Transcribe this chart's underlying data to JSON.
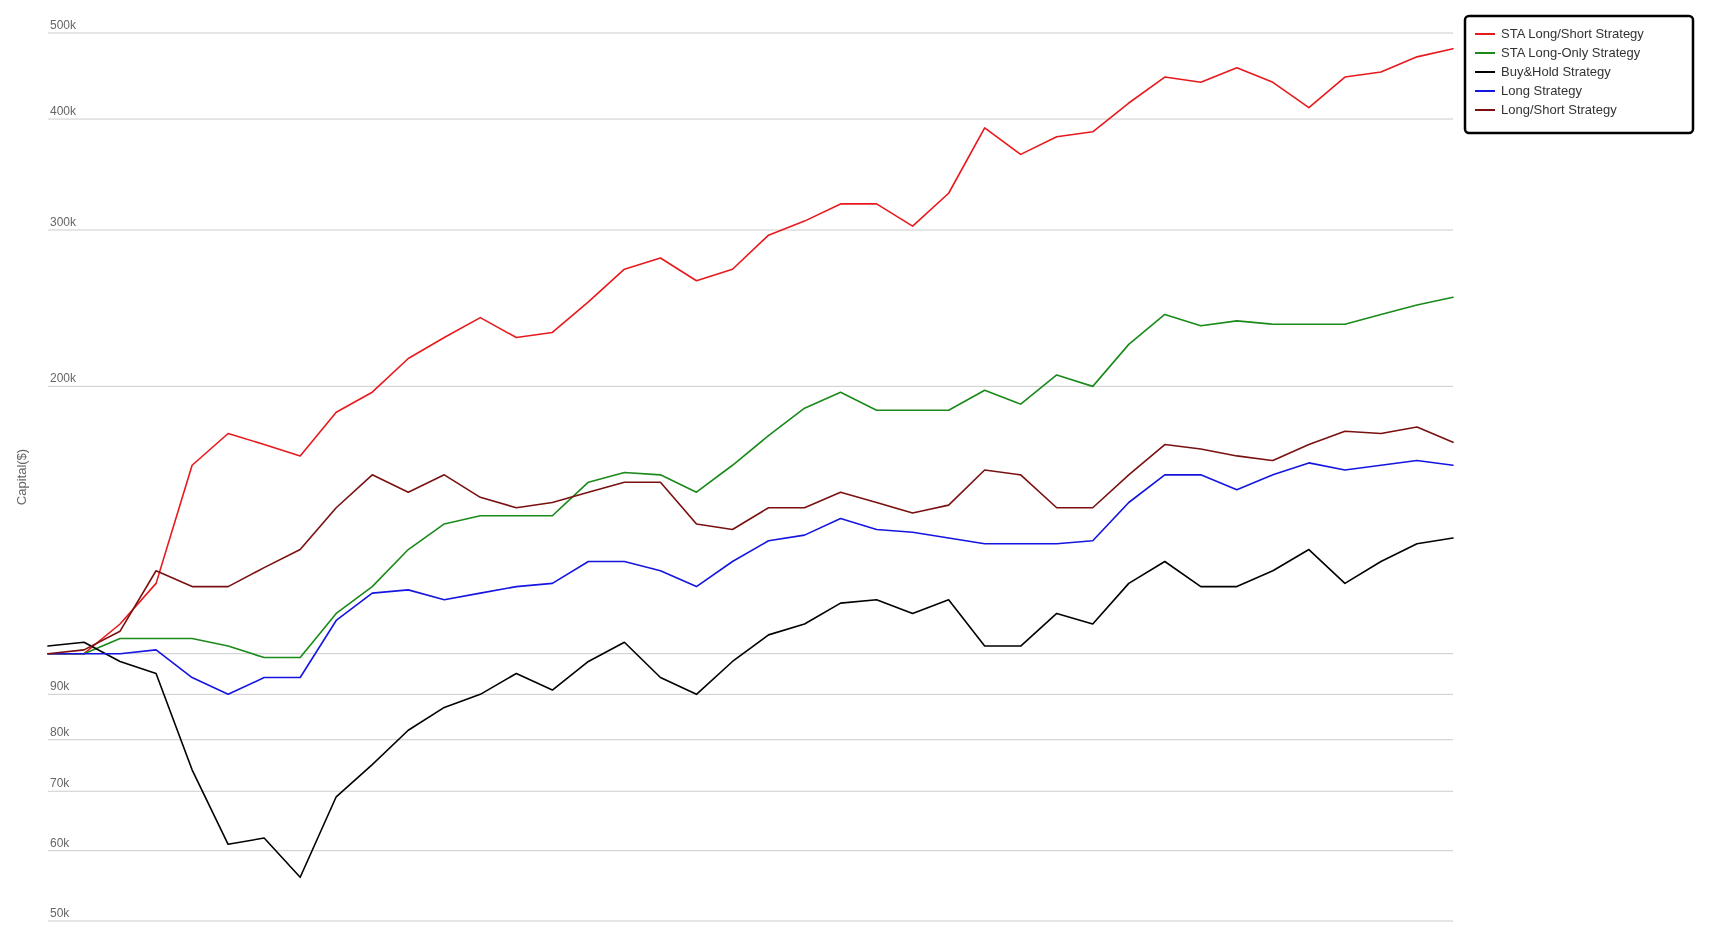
{
  "chart_data": {
    "type": "line",
    "ylabel": "Capital($)",
    "log": true,
    "grid": "y",
    "legend": "top right",
    "marker": "none",
    "line_style": "solid",
    "categories": [
      null,
      null,
      null,
      null,
      null,
      null,
      null,
      null,
      null,
      null,
      null,
      null,
      null,
      null,
      null,
      null,
      null,
      null,
      null,
      null,
      null,
      null,
      null,
      null,
      null,
      null,
      null,
      null,
      null,
      null,
      null,
      null,
      null,
      null,
      null,
      null,
      null,
      null,
      null,
      null
    ],
    "ylim": [
      50000,
      500000
    ],
    "yticks": [
      {
        "value": 50000,
        "label": "50k"
      },
      {
        "value": 60000,
        "label": "60k"
      },
      {
        "value": 70000,
        "label": "70k"
      },
      {
        "value": 80000,
        "label": "80k"
      },
      {
        "value": 90000,
        "label": "90k"
      },
      {
        "value": 100000,
        "label": null
      },
      {
        "value": 200000,
        "label": "200k"
      },
      {
        "value": 300000,
        "label": "300k"
      },
      {
        "value": 400000,
        "label": "400k"
      },
      {
        "value": 500000,
        "label": "500k"
      }
    ],
    "series": [
      {
        "name": "STA Long/Short Strategy",
        "color": "#e8191c",
        "values": [
          100000,
          100000,
          108000,
          120000,
          163000,
          177000,
          172000,
          167000,
          187000,
          197000,
          215000,
          227000,
          239000,
          227000,
          230000,
          249000,
          271000,
          279000,
          263000,
          271000,
          296000,
          307000,
          321000,
          321000,
          303000,
          330000,
          391000,
          365000,
          382000,
          387000,
          417000,
          446000,
          440000,
          457000,
          440000,
          412000,
          446000,
          452000,
          470000,
          480000
        ]
      },
      {
        "name": "STA Long-Only Strategy",
        "color": "#1a8a1a",
        "values": [
          100000,
          100000,
          104000,
          104000,
          104000,
          102000,
          99000,
          99000,
          111000,
          119000,
          131000,
          140000,
          143000,
          143000,
          143000,
          156000,
          160000,
          159000,
          152000,
          163000,
          176000,
          189000,
          197000,
          188000,
          188000,
          188000,
          198000,
          191000,
          206000,
          200000,
          223000,
          241000,
          234000,
          237000,
          235000,
          235000,
          235000,
          241000,
          247000,
          252000
        ]
      },
      {
        "name": "Buy&Hold Strategy",
        "color": "#000000",
        "values": [
          102000,
          103000,
          98000,
          95000,
          74000,
          61000,
          62000,
          56000,
          69000,
          75000,
          82000,
          87000,
          90000,
          95000,
          91000,
          98000,
          103000,
          94000,
          90000,
          98000,
          105000,
          108000,
          114000,
          115000,
          111000,
          115000,
          102000,
          102000,
          111000,
          108000,
          120000,
          127000,
          119000,
          119000,
          124000,
          131000,
          120000,
          127000,
          133000,
          135000
        ]
      },
      {
        "name": "Long Strategy",
        "color": "#1515e0",
        "values": [
          100000,
          100000,
          100000,
          101000,
          94000,
          90000,
          94000,
          94000,
          109000,
          117000,
          118000,
          115000,
          117000,
          119000,
          120000,
          127000,
          127000,
          124000,
          119000,
          127000,
          134000,
          136000,
          142000,
          138000,
          137000,
          135000,
          133000,
          133000,
          133000,
          134000,
          148000,
          159000,
          159000,
          153000,
          159000,
          164000,
          161000,
          163000,
          165000,
          163000
        ]
      },
      {
        "name": "Long/Short Strategy",
        "color": "#7a1010",
        "values": [
          100000,
          101000,
          106000,
          124000,
          119000,
          119000,
          125000,
          131000,
          146000,
          159000,
          152000,
          159000,
          150000,
          146000,
          148000,
          152000,
          156000,
          156000,
          140000,
          138000,
          146000,
          146000,
          152000,
          148000,
          144000,
          147000,
          161000,
          159000,
          146000,
          146000,
          159000,
          172000,
          170000,
          167000,
          165000,
          172000,
          178000,
          177000,
          180000,
          173000
        ]
      }
    ]
  }
}
